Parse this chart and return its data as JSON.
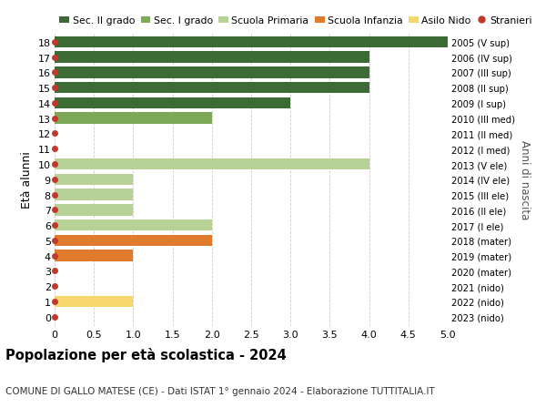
{
  "ages": [
    18,
    17,
    16,
    15,
    14,
    13,
    12,
    11,
    10,
    9,
    8,
    7,
    6,
    5,
    4,
    3,
    2,
    1,
    0
  ],
  "right_labels": [
    "2005 (V sup)",
    "2006 (IV sup)",
    "2007 (III sup)",
    "2008 (II sup)",
    "2009 (I sup)",
    "2010 (III med)",
    "2011 (II med)",
    "2012 (I med)",
    "2013 (V ele)",
    "2014 (IV ele)",
    "2015 (III ele)",
    "2016 (II ele)",
    "2017 (I ele)",
    "2018 (mater)",
    "2019 (mater)",
    "2020 (mater)",
    "2021 (nido)",
    "2022 (nido)",
    "2023 (nido)"
  ],
  "bar_values": [
    5,
    4,
    4,
    4,
    3,
    2,
    0,
    0,
    4,
    1,
    1,
    1,
    2,
    2,
    1,
    0,
    0,
    1,
    0
  ],
  "bar_colors": [
    "#3d6b35",
    "#3d6b35",
    "#3d6b35",
    "#3d6b35",
    "#3d6b35",
    "#7da857",
    "#7da857",
    "#7da857",
    "#b8d196",
    "#b8d196",
    "#b8d196",
    "#b8d196",
    "#b8d196",
    "#e07b2e",
    "#e07b2e",
    "#e07b2e",
    "#f5d76e",
    "#f5d76e",
    "#f5d76e"
  ],
  "dot_color": "#c0392b",
  "xlim": [
    0,
    5.0
  ],
  "xticks": [
    0,
    0.5,
    1.0,
    1.5,
    2.0,
    2.5,
    3.0,
    3.5,
    4.0,
    4.5,
    5.0
  ],
  "xtick_labels": [
    "0",
    "0.5",
    "1.0",
    "1.5",
    "2.0",
    "2.5",
    "3.0",
    "3.5",
    "4.0",
    "4.5",
    "5.0"
  ],
  "ylabel_left": "Età alunni",
  "ylabel_right": "Anni di nascita",
  "title": "Popolazione per età scolastica - 2024",
  "subtitle": "COMUNE DI GALLO MATESE (CE) - Dati ISTAT 1° gennaio 2024 - Elaborazione TUTTITALIA.IT",
  "legend_labels": [
    "Sec. II grado",
    "Sec. I grado",
    "Scuola Primaria",
    "Scuola Infanzia",
    "Asilo Nido",
    "Stranieri"
  ],
  "legend_colors": [
    "#3d6b35",
    "#7da857",
    "#b8d196",
    "#e07b2e",
    "#f5d76e",
    "#c0392b"
  ],
  "bg_color": "#ffffff",
  "grid_color": "#cccccc",
  "bar_height": 0.75,
  "ylim_low": -0.6,
  "ylim_high": 18.6
}
